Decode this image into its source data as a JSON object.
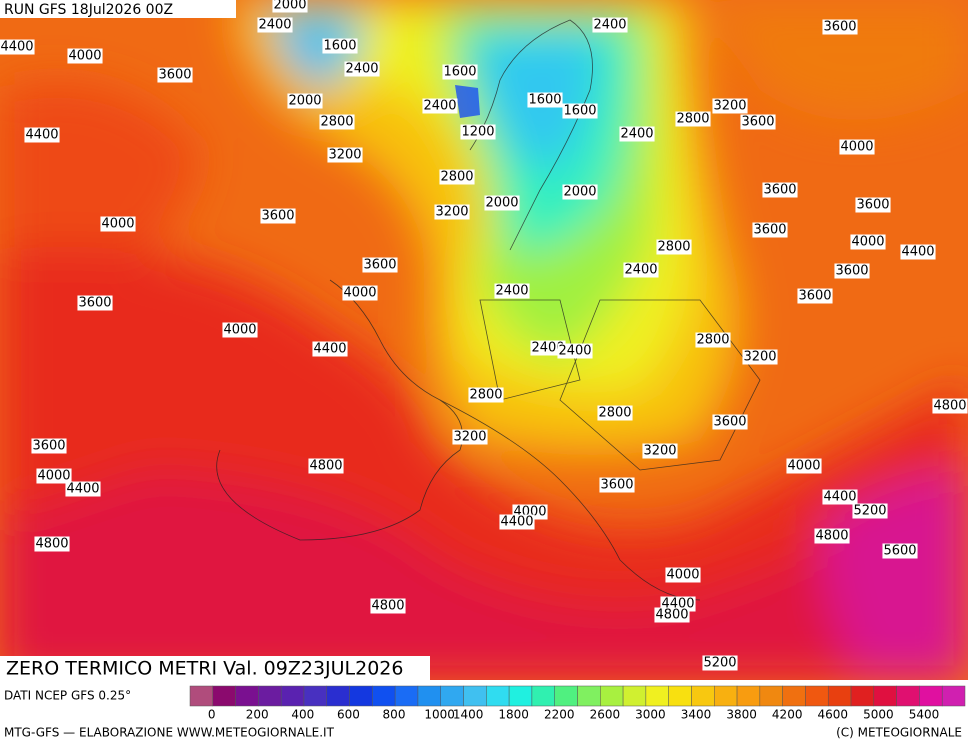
{
  "header": {
    "run": "RUN GFS 18Jul2026 00Z"
  },
  "map": {
    "contour_labels": [
      2000,
      2400,
      1600,
      2400,
      2000,
      2800,
      3200,
      4400,
      4000,
      3600,
      4400,
      4000,
      3600,
      3600,
      4000,
      3600,
      4000,
      4400,
      1600,
      2400,
      1200,
      1600,
      1600,
      2400,
      2800,
      3200,
      3600,
      3600,
      4000,
      3600,
      3600,
      3600,
      4000,
      4400,
      3600,
      3600,
      2800,
      3200,
      2000,
      2000,
      2800,
      2400,
      2400,
      2800,
      3200,
      2400,
      2400,
      2800,
      2800,
      3600,
      3200,
      3200,
      3600,
      4800,
      4000,
      4400,
      3600,
      4000,
      4400,
      5200,
      4000,
      4400,
      4800,
      4800,
      5600,
      4000,
      4400,
      4800,
      4800,
      5200,
      4800,
      2400
    ]
  },
  "footer": {
    "title": "ZERO TERMICO METRI Val. 09Z23JUL2026",
    "source": "DATI NCEP GFS 0.25°",
    "credit_left": "MTG-GFS — ELABORAZIONE WWW.METEOGIORNALE.IT",
    "credit_right": "(C) METEOGIORNALE"
  },
  "colorbar": {
    "ticks": [
      0,
      200,
      400,
      600,
      800,
      1000,
      1400,
      1800,
      2200,
      2600,
      3000,
      3400,
      3800,
      4200,
      4600,
      5000,
      5400
    ],
    "colors": [
      "#b04c7c",
      "#8b0a6e",
      "#7a1090",
      "#6b1ca0",
      "#5a22b0",
      "#4830c0",
      "#2a2ed0",
      "#1438e0",
      "#1050f0",
      "#1a6cf5",
      "#2090f0",
      "#30a8f0",
      "#40c0f0",
      "#30dcf0",
      "#20f0e0",
      "#30f0b0",
      "#50f080",
      "#80f060",
      "#a8f040",
      "#d0f030",
      "#f0f020",
      "#f8e010",
      "#f8c810",
      "#f8b010",
      "#f89c10",
      "#f08810",
      "#f07010",
      "#f05810",
      "#e84010",
      "#e02020",
      "#e01040",
      "#e01070",
      "#e010a0",
      "#d020b0"
    ]
  }
}
